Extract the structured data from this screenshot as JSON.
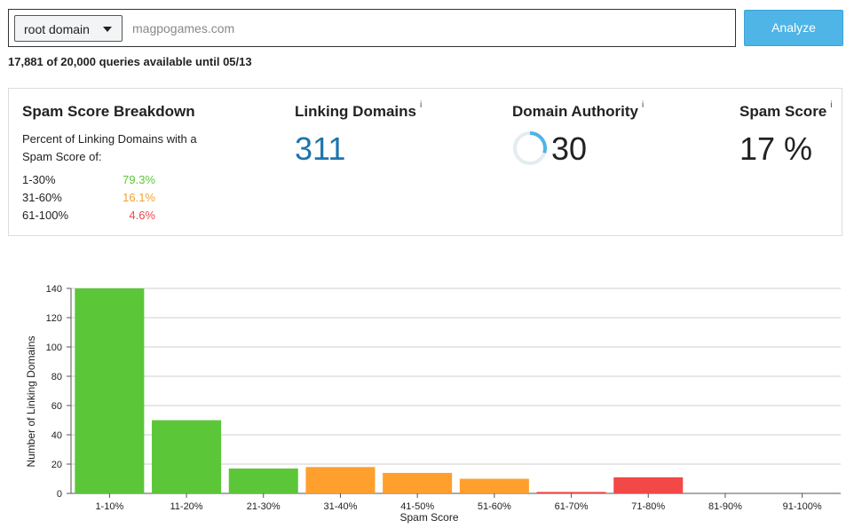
{
  "search": {
    "scope_label": "root domain",
    "placeholder": "magpogames.com",
    "value": "",
    "analyze_label": "Analyze"
  },
  "quota_text": "17,881 of 20,000 queries available until 05/13",
  "breakdown": {
    "title": "Spam Score Breakdown",
    "description": "Percent of Linking Domains with a Spam Score of:",
    "rows": [
      {
        "range": "1-30%",
        "value": "79.3%",
        "color": "#5cc639"
      },
      {
        "range": "31-60%",
        "value": "16.1%",
        "color": "#f5a031"
      },
      {
        "range": "61-100%",
        "value": "4.6%",
        "color": "#f04848"
      }
    ]
  },
  "metrics": {
    "info_glyph": "i",
    "linking_domains": {
      "title": "Linking Domains",
      "value": "311",
      "color": "#1d74ad"
    },
    "domain_authority": {
      "title": "Domain Authority",
      "value": "30",
      "ring_fraction": 0.3,
      "ring_color": "#4fb4e6",
      "ring_track_color": "#e3edef"
    },
    "spam_score": {
      "title": "Spam Score",
      "value": "17 %"
    }
  },
  "chart_data": {
    "type": "bar",
    "xlabel": "Spam Score",
    "ylabel": "Number of Linking Domains",
    "ylim": [
      0,
      140
    ],
    "yticks": [
      0,
      20,
      40,
      60,
      80,
      100,
      120,
      140
    ],
    "grid": true,
    "categories": [
      "1-10%",
      "11-20%",
      "21-30%",
      "31-40%",
      "41-50%",
      "51-60%",
      "61-70%",
      "71-80%",
      "81-90%",
      "91-100%"
    ],
    "values": [
      140,
      50,
      17,
      18,
      14,
      10,
      1,
      11,
      0,
      0
    ],
    "colors": [
      "#5cc639",
      "#5cc639",
      "#5cc639",
      "#ff9f2e",
      "#ff9f2e",
      "#ff9f2e",
      "#f24848",
      "#f24848",
      "#f24848",
      "#f24848"
    ]
  }
}
